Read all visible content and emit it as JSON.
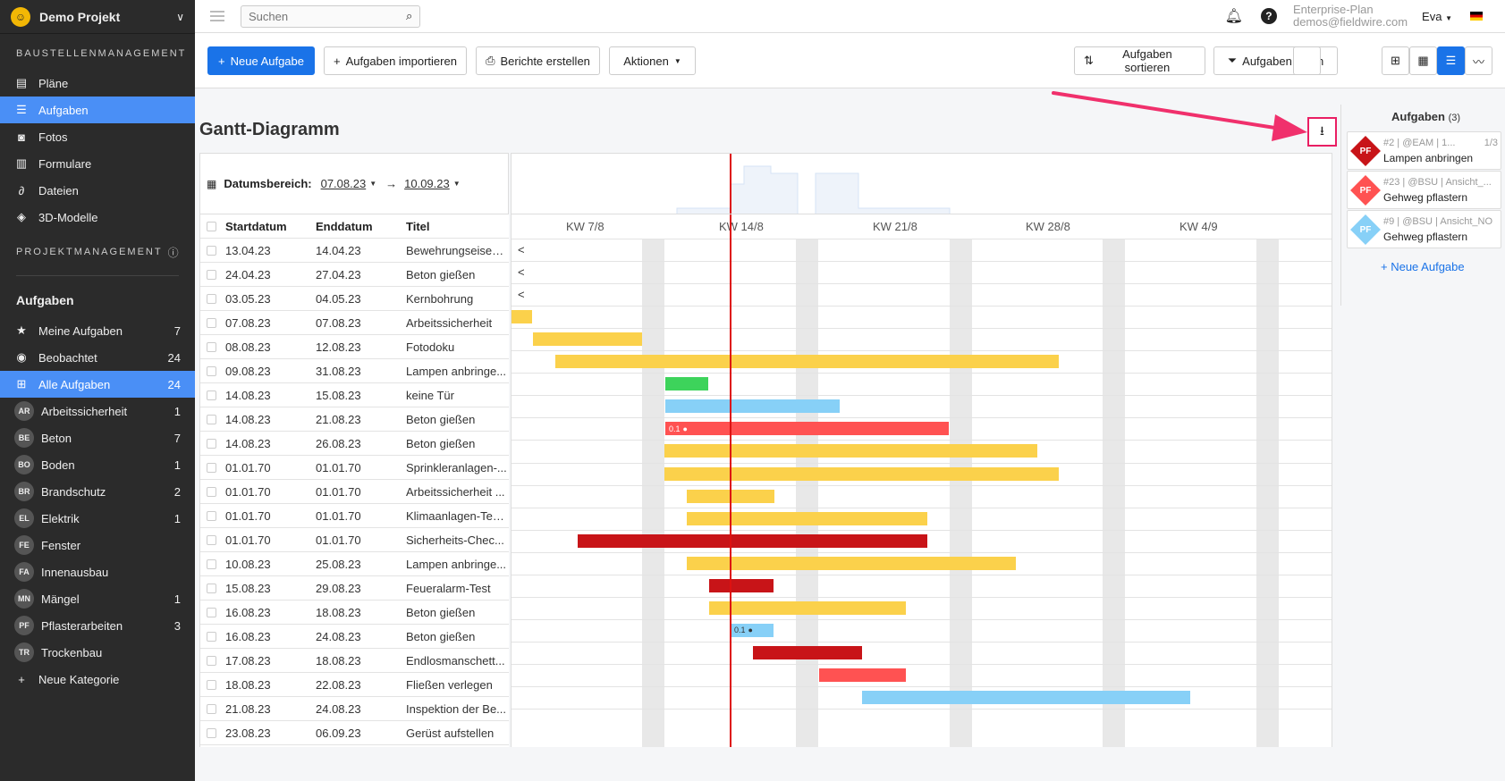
{
  "project": {
    "name": "Demo Projekt"
  },
  "sidebar": {
    "section1": "BAUSTELLENMANAGEMENT",
    "nav": [
      {
        "label": "Pläne",
        "icon": "map-icon"
      },
      {
        "label": "Aufgaben",
        "icon": "list-icon",
        "active": true
      },
      {
        "label": "Fotos",
        "icon": "camera-icon"
      },
      {
        "label": "Formulare",
        "icon": "clipboard-icon"
      },
      {
        "label": "Dateien",
        "icon": "paperclip-icon"
      },
      {
        "label": "3D-Modelle",
        "icon": "cube-icon"
      }
    ],
    "section2": "PROJEKTMANAGEMENT",
    "tasks_title": "Aufgaben",
    "task_filters": [
      {
        "label": "Meine Aufgaben",
        "count": "7",
        "icon": "star-icon"
      },
      {
        "label": "Beobachtet",
        "count": "24",
        "icon": "eye-icon"
      },
      {
        "label": "Alle Aufgaben",
        "count": "24",
        "icon": "grid-icon",
        "active": true
      }
    ],
    "categories": [
      {
        "abbr": "AR",
        "label": "Arbeitssicherheit",
        "count": "1"
      },
      {
        "abbr": "BE",
        "label": "Beton",
        "count": "7"
      },
      {
        "abbr": "BO",
        "label": "Boden",
        "count": "1"
      },
      {
        "abbr": "BR",
        "label": "Brandschutz",
        "count": "2"
      },
      {
        "abbr": "EL",
        "label": "Elektrik",
        "count": "1"
      },
      {
        "abbr": "FE",
        "label": "Fenster",
        "count": ""
      },
      {
        "abbr": "FA",
        "label": "Innenausbau",
        "count": ""
      },
      {
        "abbr": "MN",
        "label": "Mängel",
        "count": "1"
      },
      {
        "abbr": "PF",
        "label": "Pflasterarbeiten",
        "count": "3"
      },
      {
        "abbr": "TR",
        "label": "Trockenbau",
        "count": ""
      }
    ],
    "new_category": "Neue Kategorie"
  },
  "topbar": {
    "search_placeholder": "Suchen",
    "plan": "Enterprise-Plan",
    "email": "demos@fieldwire.com",
    "user": "Eva"
  },
  "toolbar": {
    "new_task": "Neue Aufgabe",
    "import": "Aufgaben importieren",
    "reports": "Berichte erstellen",
    "actions": "Aktionen",
    "sort": "Aufgaben sortieren",
    "filter": "Aufgaben filtern"
  },
  "gantt": {
    "title": "Gantt-Diagramm",
    "date_range_label": "Datumsbereich:",
    "date_from": "07.08.23",
    "date_to": "10.09.23",
    "columns": {
      "start": "Startdatum",
      "end": "Enddatum",
      "title": "Titel"
    },
    "weeks": [
      "KW 7/8",
      "KW 14/8",
      "KW 21/8",
      "KW 28/8",
      "KW 4/9"
    ],
    "rows": [
      {
        "start": "13.04.23",
        "end": "14.04.23",
        "title": "Bewehrungseisen..."
      },
      {
        "start": "24.04.23",
        "end": "27.04.23",
        "title": "Beton gießen"
      },
      {
        "start": "03.05.23",
        "end": "04.05.23",
        "title": "Kernbohrung"
      },
      {
        "start": "07.08.23",
        "end": "07.08.23",
        "title": "Arbeitssicherheit"
      },
      {
        "start": "08.08.23",
        "end": "12.08.23",
        "title": "Fotodoku"
      },
      {
        "start": "09.08.23",
        "end": "31.08.23",
        "title": "Lampen anbringe..."
      },
      {
        "start": "14.08.23",
        "end": "15.08.23",
        "title": "keine Tür"
      },
      {
        "start": "14.08.23",
        "end": "21.08.23",
        "title": "Beton gießen"
      },
      {
        "start": "14.08.23",
        "end": "26.08.23",
        "title": "Beton gießen"
      },
      {
        "start": "01.01.70",
        "end": "01.01.70",
        "title": "Sprinkleranlagen-..."
      },
      {
        "start": "01.01.70",
        "end": "01.01.70",
        "title": "Arbeitssicherheit ..."
      },
      {
        "start": "01.01.70",
        "end": "01.01.70",
        "title": "Klimaanlagen-Tes..."
      },
      {
        "start": "01.01.70",
        "end": "01.01.70",
        "title": "Sicherheits-Chec..."
      },
      {
        "start": "10.08.23",
        "end": "25.08.23",
        "title": "Lampen anbringe..."
      },
      {
        "start": "15.08.23",
        "end": "29.08.23",
        "title": "Feueralarm-Test"
      },
      {
        "start": "16.08.23",
        "end": "18.08.23",
        "title": "Beton gießen"
      },
      {
        "start": "16.08.23",
        "end": "24.08.23",
        "title": "Beton gießen"
      },
      {
        "start": "17.08.23",
        "end": "18.08.23",
        "title": "Endlosmanschett..."
      },
      {
        "start": "18.08.23",
        "end": "22.08.23",
        "title": "Fließen verlegen"
      },
      {
        "start": "21.08.23",
        "end": "24.08.23",
        "title": "Inspektion der Be..."
      },
      {
        "start": "23.08.23",
        "end": "06.09.23",
        "title": "Gerüst aufstellen"
      }
    ],
    "bar_labels": {
      "left_arrow": "<",
      "progress_a": "0.1",
      "progress_b": "0.1"
    }
  },
  "colors": {
    "yellow": "#fbd14b",
    "green": "#3dd35b",
    "blue": "#87d0f7",
    "red": "#ff5252",
    "darkred": "#c81418",
    "accent": "#1a73e8"
  },
  "right_panel": {
    "title": "Aufgaben",
    "count": "(3)",
    "tasks": [
      {
        "badge": "PF",
        "meta": "#2 | @EAM | 1...",
        "check": "1/3",
        "title": "Lampen anbringen",
        "color": "#c81418"
      },
      {
        "badge": "PF",
        "meta": "#23 | @BSU | Ansicht_...",
        "check": "",
        "title": "Gehweg pflastern",
        "color": "#ff5252"
      },
      {
        "badge": "PF",
        "meta": "#9 | @BSU | Ansicht_NO",
        "check": "",
        "title": "Gehweg pflastern",
        "color": "#87d0f7"
      }
    ],
    "new_task": "+ Neue Aufgabe"
  }
}
